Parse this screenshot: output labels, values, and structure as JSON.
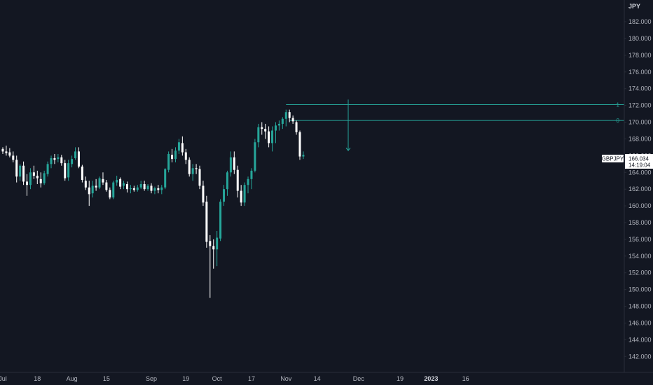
{
  "colors": {
    "background": "#131722",
    "up": "#26a69a",
    "down": "#ffffff",
    "grid": "#1e222d",
    "axis_line": "#2a2e39",
    "text": "#b2b5be",
    "level": "#26a69a"
  },
  "chart_data": {
    "type": "candlestick",
    "title": "",
    "symbol": "GBPJPY",
    "currency": "JPY",
    "last_price": "166.034",
    "countdown": "14:19:04",
    "grid": false,
    "x_labels": [
      {
        "label": "Jul",
        "idx": 0,
        "bold": false
      },
      {
        "label": "18",
        "idx": 10,
        "bold": false
      },
      {
        "label": "Aug",
        "idx": 20,
        "bold": false
      },
      {
        "label": "15",
        "idx": 30,
        "bold": false
      },
      {
        "label": "Sep",
        "idx": 43,
        "bold": false
      },
      {
        "label": "19",
        "idx": 53,
        "bold": false
      },
      {
        "label": "Oct",
        "idx": 62,
        "bold": false
      },
      {
        "label": "17",
        "idx": 72,
        "bold": false
      },
      {
        "label": "Nov",
        "idx": 82,
        "bold": false
      },
      {
        "label": "14",
        "idx": 91,
        "bold": false
      },
      {
        "label": "Dec",
        "idx": 103,
        "bold": false
      },
      {
        "label": "19",
        "idx": 115,
        "bold": false
      },
      {
        "label": "2023",
        "idx": 124,
        "bold": true
      },
      {
        "label": "16",
        "idx": 134,
        "bold": false
      }
    ],
    "y_ticks": [
      "142.000",
      "144.000",
      "146.000",
      "148.000",
      "150.000",
      "152.000",
      "154.000",
      "156.000",
      "158.000",
      "160.000",
      "162.000",
      "164.000",
      "166.000",
      "168.000",
      "170.000",
      "172.000",
      "174.000",
      "176.000",
      "178.000",
      "180.000",
      "182.000"
    ],
    "ylim": [
      140.1,
      184.6
    ],
    "levels": [
      {
        "label": "1",
        "value": 172.1,
        "start_idx": 82
      },
      {
        "label": "0",
        "value": 170.2,
        "start_idx": 83
      }
    ],
    "target_arrow": {
      "idx": 100,
      "from": 172.7,
      "to": 166.6
    },
    "candles": [
      [
        166.8,
        167.0,
        166.2,
        166.5
      ],
      [
        166.5,
        167.2,
        166.0,
        166.3
      ],
      [
        166.4,
        166.9,
        165.8,
        166.0
      ],
      [
        166.0,
        166.5,
        165.2,
        165.5
      ],
      [
        165.5,
        166.0,
        162.8,
        163.5
      ],
      [
        163.5,
        165.0,
        163.0,
        164.8
      ],
      [
        164.8,
        165.3,
        162.5,
        162.9
      ],
      [
        162.9,
        163.8,
        161.2,
        162.5
      ],
      [
        162.5,
        164.5,
        162.0,
        164.0
      ],
      [
        164.0,
        164.8,
        163.2,
        163.6
      ],
      [
        163.6,
        164.2,
        162.6,
        163.3
      ],
      [
        163.2,
        164.0,
        162.2,
        162.7
      ],
      [
        162.7,
        164.2,
        162.5,
        163.9
      ],
      [
        163.8,
        165.3,
        163.5,
        165.0
      ],
      [
        165.0,
        166.0,
        164.5,
        165.7
      ],
      [
        165.7,
        166.2,
        165.0,
        165.5
      ],
      [
        165.6,
        166.2,
        165.2,
        165.8
      ],
      [
        165.8,
        166.1,
        164.8,
        165.1
      ],
      [
        165.1,
        165.5,
        163.0,
        163.3
      ],
      [
        163.4,
        165.5,
        163.0,
        165.1
      ],
      [
        165.0,
        166.0,
        164.6,
        165.6
      ],
      [
        165.7,
        167.0,
        165.5,
        166.5
      ],
      [
        166.5,
        167.0,
        164.5,
        164.7
      ],
      [
        164.7,
        164.9,
        162.8,
        163.1
      ],
      [
        163.0,
        163.5,
        161.9,
        162.2
      ],
      [
        162.2,
        163.0,
        160.0,
        161.4
      ],
      [
        161.5,
        163.0,
        161.0,
        162.4
      ],
      [
        162.4,
        163.2,
        161.8,
        162.2
      ],
      [
        162.2,
        163.5,
        162.0,
        163.3
      ],
      [
        163.2,
        164.0,
        162.5,
        162.8
      ],
      [
        162.8,
        163.1,
        161.7,
        161.9
      ],
      [
        161.9,
        162.2,
        160.8,
        161.0
      ],
      [
        161.0,
        163.0,
        160.8,
        162.8
      ],
      [
        162.8,
        163.6,
        162.4,
        163.1
      ],
      [
        163.2,
        163.4,
        162.0,
        162.3
      ],
      [
        162.4,
        163.0,
        162.0,
        162.7
      ],
      [
        162.6,
        162.9,
        161.6,
        162.0
      ],
      [
        162.0,
        162.5,
        161.5,
        162.1
      ],
      [
        162.1,
        162.4,
        161.7,
        161.9
      ],
      [
        161.9,
        162.5,
        161.7,
        162.2
      ],
      [
        162.2,
        163.0,
        162.0,
        162.6
      ],
      [
        162.6,
        163.0,
        161.8,
        162.0
      ],
      [
        162.0,
        162.6,
        161.8,
        162.4
      ],
      [
        162.4,
        162.7,
        161.5,
        161.8
      ],
      [
        161.8,
        162.3,
        161.4,
        162.1
      ],
      [
        162.1,
        162.5,
        161.5,
        161.9
      ],
      [
        161.9,
        162.5,
        161.4,
        162.2
      ],
      [
        162.2,
        164.5,
        162.0,
        164.4
      ],
      [
        164.3,
        166.5,
        164.0,
        166.2
      ],
      [
        166.1,
        166.8,
        165.2,
        165.6
      ],
      [
        165.6,
        167.0,
        165.2,
        166.6
      ],
      [
        166.6,
        168.0,
        166.2,
        167.6
      ],
      [
        167.5,
        168.3,
        166.0,
        166.4
      ],
      [
        166.4,
        166.8,
        165.0,
        165.5
      ],
      [
        165.5,
        165.8,
        163.5,
        163.8
      ],
      [
        163.8,
        165.0,
        163.0,
        164.5
      ],
      [
        164.5,
        165.0,
        163.8,
        164.4
      ],
      [
        164.4,
        164.8,
        162.0,
        162.4
      ],
      [
        162.4,
        163.0,
        160.0,
        160.4
      ],
      [
        160.5,
        161.2,
        155.0,
        155.7
      ],
      [
        155.8,
        156.5,
        149.0,
        155.2
      ],
      [
        155.2,
        156.0,
        152.5,
        154.8
      ],
      [
        154.8,
        157.0,
        152.8,
        156.2
      ],
      [
        156.1,
        160.8,
        155.8,
        160.5
      ],
      [
        160.5,
        162.5,
        160.0,
        162.0
      ],
      [
        162.0,
        164.2,
        161.2,
        164.0
      ],
      [
        164.0,
        166.5,
        163.5,
        165.8
      ],
      [
        165.8,
        166.5,
        163.8,
        164.3
      ],
      [
        164.3,
        164.8,
        161.0,
        161.8
      ],
      [
        161.8,
        162.5,
        160.0,
        160.4
      ],
      [
        160.4,
        162.8,
        160.0,
        162.5
      ],
      [
        162.5,
        163.5,
        161.5,
        163.2
      ],
      [
        163.2,
        164.5,
        162.0,
        164.2
      ],
      [
        164.2,
        168.0,
        164.0,
        167.6
      ],
      [
        167.6,
        169.8,
        167.0,
        169.4
      ],
      [
        169.4,
        170.0,
        168.5,
        169.2
      ],
      [
        169.2,
        169.8,
        168.0,
        168.9
      ],
      [
        168.9,
        169.5,
        167.0,
        167.5
      ],
      [
        167.5,
        169.5,
        166.5,
        169.0
      ],
      [
        169.0,
        170.0,
        167.5,
        169.6
      ],
      [
        169.6,
        170.2,
        169.0,
        169.8
      ],
      [
        169.8,
        170.6,
        169.2,
        170.4
      ],
      [
        170.4,
        171.5,
        169.5,
        171.2
      ],
      [
        171.2,
        171.5,
        170.0,
        170.5
      ],
      [
        170.5,
        170.8,
        169.8,
        170.1
      ],
      [
        170.0,
        170.2,
        168.5,
        168.8
      ],
      [
        168.8,
        169.0,
        165.5,
        165.9
      ],
      [
        165.9,
        166.5,
        165.6,
        166.1
      ]
    ]
  }
}
